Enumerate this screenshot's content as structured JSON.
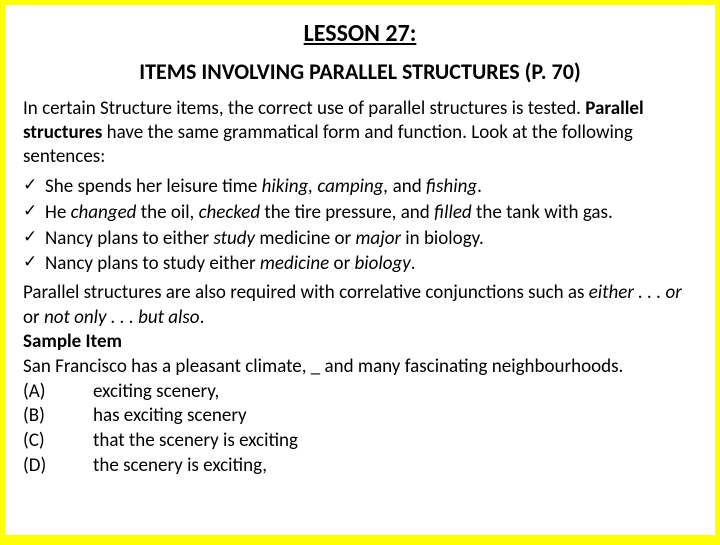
{
  "title": "LESSON 27:",
  "subtitle": "ITEMS INVOLVING PARALLEL STRUCTURES (P. 70)",
  "intro_part1": "In certain Structure items, the correct use of parallel structures is tested. ",
  "intro_bold": "Parallel structures",
  "intro_part2": " have the same grammatical form and function. Look at the following sentences:",
  "bullets": [
    {
      "pre": " She spends her leisure time ",
      "i1": "hiking,",
      "mid1": " ",
      "i2": "camping,",
      "mid2": " and ",
      "i3": "fishing",
      "post": "."
    },
    {
      "pre": "He ",
      "i1": "changed",
      "mid1": " the oil, ",
      "i2": "checked",
      "mid2": " the tire pressure, and ",
      "i3": "filled",
      "post": " the tank with gas."
    },
    {
      "pre": "Nancy plans to either ",
      "i1": "study",
      "mid1": " medicine or ",
      "i2": "major",
      "mid2": " in biology.",
      "i3": "",
      "post": ""
    },
    {
      "pre": "Nancy plans to study either ",
      "i1": "medicine",
      "mid1": " or ",
      "i2": "biology",
      "mid2": ".",
      "i3": "",
      "post": ""
    }
  ],
  "para2_a": "Parallel structures are also required with correlative conjunctions such as ",
  "para2_i1": "either . . . or",
  "para2_b": " or ",
  "para2_i2": "not only . . . but also",
  "para2_c": ".",
  "sample_heading": " Sample Item",
  "sample_text": " San Francisco has a pleasant climate, _ and many fascinating   neighbourhoods.",
  "options": [
    {
      "label": "(A)",
      "text": "exciting scenery,"
    },
    {
      "label": "(B)",
      "text": "has exciting scenery"
    },
    {
      "label": "(C)",
      "text": "that the scenery is exciting"
    },
    {
      "label": "(D)",
      "text": "the scenery is exciting,"
    }
  ]
}
